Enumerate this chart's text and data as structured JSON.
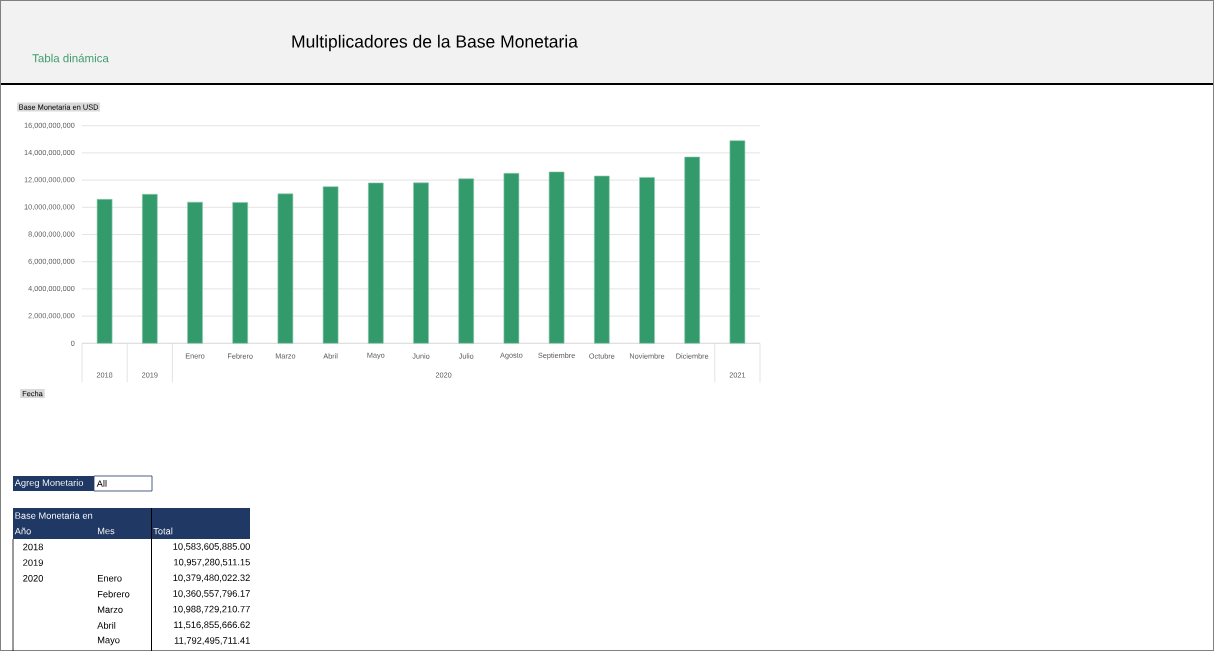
{
  "chart_data": {
    "type": "bar",
    "title": "Multiplicadores de la Base Monetaria",
    "subtitle": "Tabla dinámica",
    "ylabel": "Base Monetaria en USD",
    "categories": [
      null,
      null,
      "Enero",
      "Febrero",
      "Marzo",
      "Abril",
      "Mayo",
      "Junio",
      "Julio",
      "Agosto",
      "Septiembre",
      "Octubre",
      "Noviembre",
      "Diciembre",
      null
    ],
    "values": [
      10583605885.0,
      10957280511.15,
      10379480022.32,
      10360557796.17,
      10988729210.77,
      11516855666.62,
      11792495711.41,
      11800000000,
      12100000000,
      12500000000,
      12600000000,
      12300000000,
      12200000000,
      13700000000,
      14900000000
    ],
    "color": "#339a6c",
    "ylim": [
      0,
      16000000000
    ],
    "yticks": [
      0,
      {
        "value": 2000000000,
        "label": "2,000,000,000"
      },
      {
        "value": 4000000000,
        "label": "4,000,000,000"
      },
      {
        "value": 6000000000,
        "label": "6,000,000,000"
      },
      {
        "value": 8000000000,
        "label": "8,000,000,000"
      },
      {
        "value": 10000000000,
        "label": "10,000,000,000"
      },
      {
        "value": 12000000000,
        "label": "12,000,000,000"
      },
      {
        "value": 14000000000,
        "label": "14,000,000,000"
      },
      {
        "value": 16000000000,
        "label": "16,000,000,000"
      }
    ],
    "grid": "y",
    "annotations": [
      "2018",
      "2019",
      "2020",
      "2021",
      "Agreg Monetario",
      "All",
      "Base Monetaria en",
      "Año",
      "Mes",
      "Total",
      "Fecha",
      "10,583,605,885.00",
      "10,957,280,511.15",
      "10,379,480,022.32",
      "10,360,557,796.17",
      "10,988,729,210.77",
      "11,516,855,666.62",
      "11,792,495,711.41"
    ]
  }
}
